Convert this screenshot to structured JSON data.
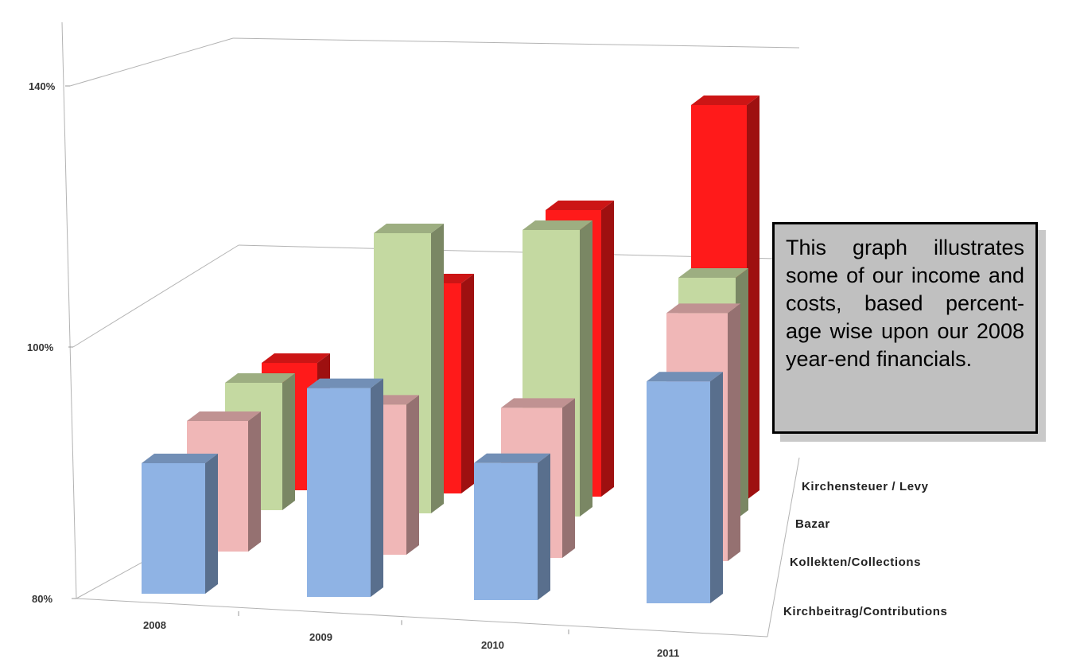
{
  "chart_data": {
    "type": "bar",
    "subtype": "3d-clustered",
    "categories": [
      "2008",
      "2009",
      "2010",
      "2011"
    ],
    "series": [
      {
        "name": "Kirchbeitrag/Contributions",
        "color": "#8fb3e4",
        "values": [
          100,
          112,
          101,
          114
        ]
      },
      {
        "name": "Kollekten/Collections",
        "color": "#f0b7b7",
        "values": [
          100,
          103,
          103,
          118
        ]
      },
      {
        "name": "Bazar",
        "color": "#c4d9a1",
        "values": [
          100,
          124,
          125,
          118
        ]
      },
      {
        "name": "Kirchensteuer  / Levy",
        "color": "#ff1a1a",
        "values": [
          100,
          113,
          125,
          142
        ]
      }
    ],
    "y_ticks": [
      "80%",
      "100%",
      "140%"
    ],
    "ylim": [
      80,
      140
    ],
    "title": "",
    "xlabel": "",
    "ylabel": "",
    "grid": false,
    "legend": "none"
  },
  "note": {
    "text": "This graph illustrates some of our income and costs, based percent-age wise upon our 2008 year-end financials."
  }
}
